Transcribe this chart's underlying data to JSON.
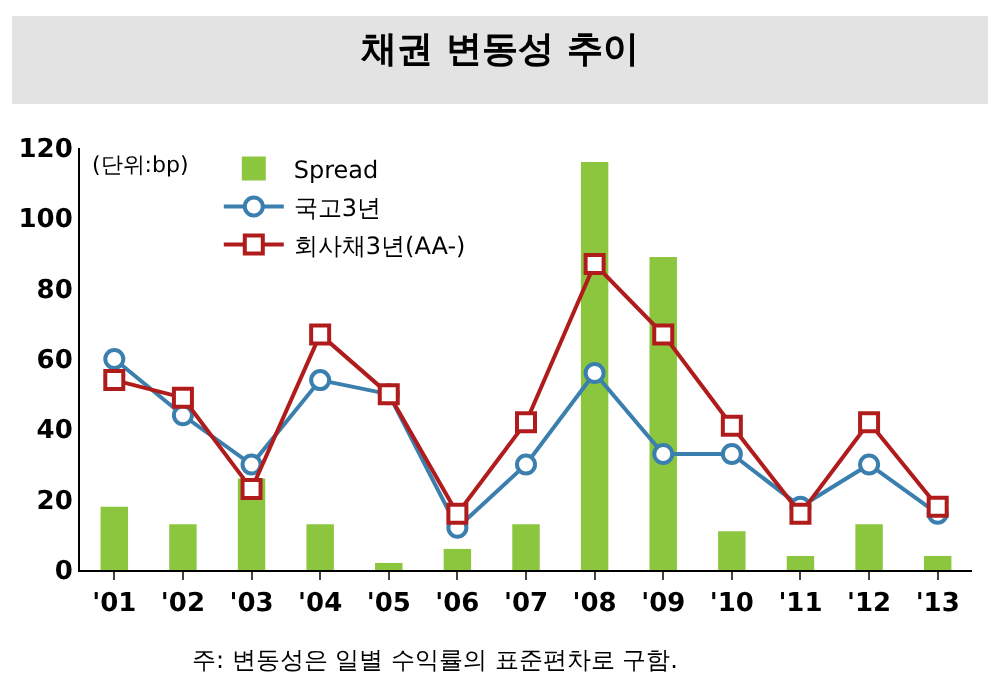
{
  "chart_data": {
    "type": "bar",
    "title": "채권 변동성 추이",
    "categories": [
      "'01",
      "'02",
      "'03",
      "'04",
      "'05",
      "'06",
      "'07",
      "'08",
      "'09",
      "'10",
      "'11",
      "'12",
      "'13"
    ],
    "series": [
      {
        "name": "Spread",
        "color": "#8cc63f",
        "values": [
          18,
          13,
          26,
          13,
          2,
          6,
          13,
          116,
          89,
          11,
          4,
          13,
          4
        ]
      },
      {
        "name": "국고3년",
        "type": "line",
        "color": "#3a7fad",
        "marker": "circle",
        "values": [
          60,
          44,
          30,
          54,
          50,
          12,
          30,
          56,
          33,
          33,
          18,
          30,
          16
        ]
      },
      {
        "name": "회사채3년(AA-)",
        "type": "line",
        "color": "#b01c1c",
        "marker": "square",
        "values": [
          54,
          49,
          23,
          67,
          50,
          16,
          42,
          87,
          67,
          41,
          16,
          42,
          18
        ]
      }
    ],
    "ylim": [
      0,
      120
    ],
    "yticks": [
      0,
      20,
      40,
      60,
      80,
      100,
      120
    ],
    "grid": false,
    "legend": "top left",
    "annotations": [
      "(단위:bp)",
      "주: 변동성은 일별 수익률의 표준편차로 구함."
    ]
  }
}
